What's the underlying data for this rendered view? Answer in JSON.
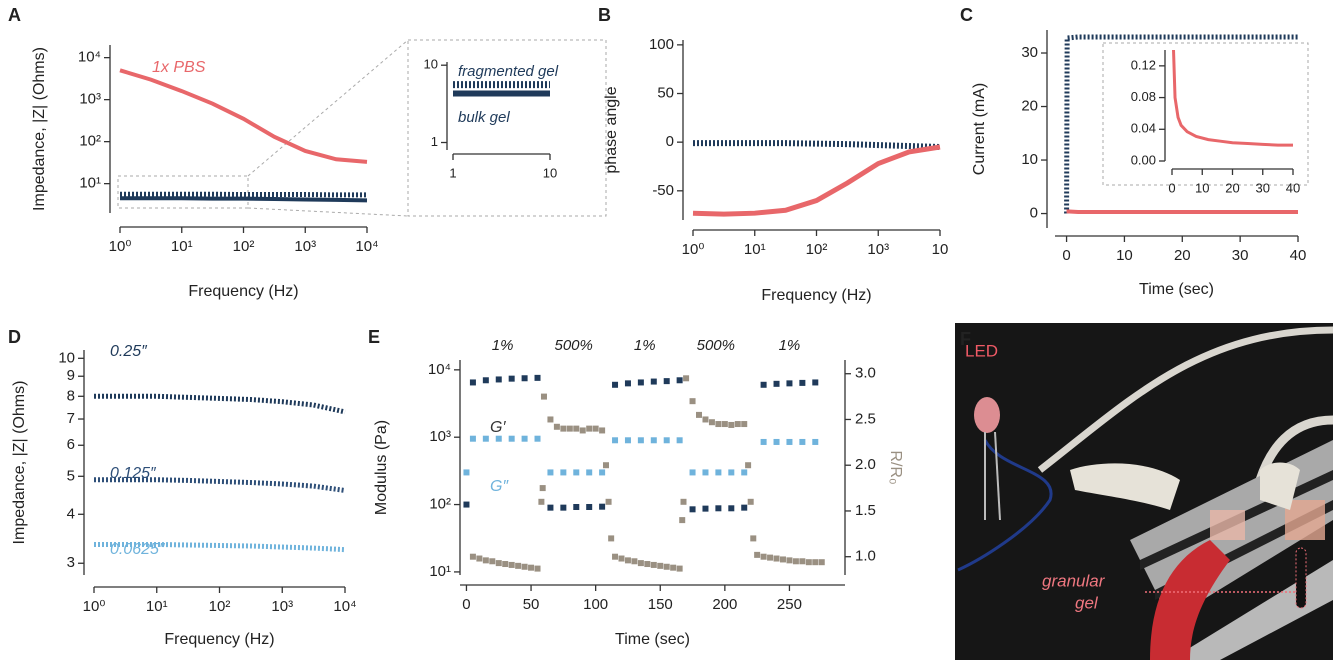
{
  "chart_data": [
    {
      "type": "line",
      "label": "A",
      "xlabel": "Frequency (Hz)",
      "ylabel": "Impedance, |Z| (Ohms)",
      "xscale": "log",
      "yscale": "log",
      "x": [
        1,
        3.16,
        10,
        31.6,
        100,
        316,
        1000,
        3162,
        10000
      ],
      "series": [
        {
          "name": "1x PBS",
          "color": "#e8676a",
          "style": "solid",
          "values": [
            5000,
            3000,
            1600,
            800,
            350,
            130,
            60,
            38,
            33
          ]
        },
        {
          "name": null,
          "color": "#1f3a5a",
          "style": "dotted",
          "values": [
            5.6,
            5.6,
            5.6,
            5.6,
            5.5,
            5.5,
            5.5,
            5.4,
            5.4
          ]
        },
        {
          "name": null,
          "color": "#1f3a5a",
          "style": "solid",
          "values": [
            4.5,
            4.5,
            4.5,
            4.4,
            4.4,
            4.3,
            4.2,
            4.1,
            4.0
          ]
        }
      ],
      "xlim": [
        1,
        10000
      ],
      "xticks": [
        {
          "value": 1,
          "label": "10⁰"
        },
        {
          "value": 10,
          "label": "10¹"
        },
        {
          "value": 100,
          "label": "10²"
        },
        {
          "value": 1000,
          "label": "10³"
        },
        {
          "value": 10000,
          "label": "10⁴"
        }
      ],
      "ylim": [
        2,
        20000
      ],
      "yticks": [
        {
          "value": 10,
          "label": "10¹"
        },
        {
          "value": 100,
          "label": "10²"
        },
        {
          "value": 1000,
          "label": "10³"
        },
        {
          "value": 10000,
          "label": "10⁴"
        }
      ]
    },
    {
      "type": "line",
      "xscale": "log",
      "yscale": "log",
      "x": [
        1,
        10
      ],
      "series": [
        {
          "name": "fragmented gel",
          "color": "#1f3a5a",
          "style": "dotted",
          "values": [
            5.6,
            5.6
          ]
        },
        {
          "name": "bulk gel",
          "color": "#1f3a5a",
          "style": "solid",
          "values": [
            4.3,
            4.3
          ]
        }
      ],
      "xlim": [
        1,
        10
      ],
      "xticks": [
        1,
        10
      ],
      "ylim": [
        0.8,
        11
      ],
      "yticks": [
        1,
        10
      ]
    },
    {
      "type": "line",
      "label": "B",
      "xlabel": "Frequency (Hz)",
      "ylabel": "phase angle",
      "xscale": "log",
      "x": [
        1,
        3.16,
        10,
        31.6,
        100,
        316,
        1000,
        3162,
        10000
      ],
      "series": [
        {
          "name": null,
          "color": "#1f3a5a",
          "style": "dotted",
          "values": [
            -1,
            -1,
            -1,
            -1,
            -1.5,
            -2,
            -3,
            -4,
            -5
          ]
        },
        {
          "name": null,
          "color": "#e8676a",
          "style": "solid",
          "values": [
            -73,
            -74,
            -73,
            -70,
            -60,
            -42,
            -22,
            -10,
            -5
          ]
        }
      ],
      "xlim": [
        1,
        10000
      ],
      "xticks": [
        {
          "value": 1,
          "label": "10⁰"
        },
        {
          "value": 10,
          "label": "10¹"
        },
        {
          "value": 100,
          "label": "10²"
        },
        {
          "value": 1000,
          "label": "10³"
        },
        {
          "value": 10000,
          "label": "10"
        }
      ],
      "ylim": [
        -80,
        105
      ],
      "yticks": [
        -50,
        0,
        50,
        100
      ]
    },
    {
      "type": "line",
      "label": "C",
      "xlabel": "Time (sec)",
      "ylabel": "Current (mA)",
      "x": [
        0,
        0.1,
        2,
        5,
        10,
        15,
        20,
        25,
        30,
        35,
        40
      ],
      "series": [
        {
          "name": null,
          "color": "#1f3a5a",
          "style": "dotted",
          "values": [
            0,
            32.8,
            33,
            33,
            33,
            33,
            33,
            33,
            33,
            33,
            33
          ]
        },
        {
          "name": null,
          "color": "#e8676a",
          "style": "solid",
          "values": [
            0.4,
            0.4,
            0.3,
            0.3,
            0.3,
            0.3,
            0.3,
            0.3,
            0.3,
            0.3,
            0.3
          ]
        }
      ],
      "xlim": [
        -2,
        40
      ],
      "xticks": [
        0,
        10,
        20,
        30,
        40
      ],
      "ylim": [
        -2.7,
        34.3
      ],
      "yticks": [
        0,
        10,
        20,
        30
      ]
    },
    {
      "type": "line",
      "x": [
        0.5,
        1,
        2,
        3,
        5,
        8,
        12,
        16,
        20,
        25,
        30,
        35,
        40
      ],
      "series": [
        {
          "name": null,
          "color": "#e8676a",
          "style": "solid",
          "values": [
            0.14,
            0.08,
            0.055,
            0.045,
            0.037,
            0.031,
            0.027,
            0.025,
            0.023,
            0.022,
            0.021,
            0.02,
            0.02
          ]
        }
      ],
      "xlim": [
        0,
        40
      ],
      "xticks": [
        0,
        10,
        20,
        30,
        40
      ],
      "ylim": [
        0,
        0.14
      ],
      "yticks": [
        {
          "value": 0,
          "label": "0.00"
        },
        0.04,
        0.08,
        0.12
      ]
    },
    {
      "type": "line",
      "label": "D",
      "xlabel": "Frequency (Hz)",
      "ylabel": "Impedance, |Z| (Ohms)",
      "xscale": "log",
      "yscale": "log",
      "x": [
        1,
        3.16,
        10,
        31.6,
        100,
        316,
        1000,
        3162,
        10000
      ],
      "series": [
        {
          "name": "0.25″",
          "color": "#1f3a5a",
          "style": "dotted",
          "values": [
            8.0,
            8.0,
            8.0,
            7.95,
            7.9,
            7.85,
            7.75,
            7.6,
            7.3
          ]
        },
        {
          "name": "0.125″",
          "color": "#2e4f78",
          "style": "dotted",
          "values": [
            4.9,
            4.9,
            4.9,
            4.88,
            4.85,
            4.82,
            4.78,
            4.72,
            4.6
          ]
        },
        {
          "name": "0.0625″",
          "color": "#6fb3dc",
          "style": "dotted",
          "values": [
            3.35,
            3.35,
            3.35,
            3.34,
            3.33,
            3.32,
            3.3,
            3.28,
            3.25
          ]
        }
      ],
      "xlim": [
        1,
        10000
      ],
      "xticks": [
        {
          "value": 1,
          "label": "10⁰"
        },
        {
          "value": 10,
          "label": "10¹"
        },
        {
          "value": 100,
          "label": "10²"
        },
        {
          "value": 1000,
          "label": "10³"
        },
        {
          "value": 10000,
          "label": "10⁴"
        }
      ],
      "ylim": [
        2.8,
        10.5
      ],
      "yticks": [
        3,
        4,
        5,
        6,
        7,
        8,
        9,
        10
      ]
    },
    {
      "type": "scatter",
      "label": "E",
      "xlabel": "Time (sec)",
      "ylabel": "Modulus (Pa)",
      "y2label": "R/R₀",
      "yscale": "log",
      "annotations": [
        "1%",
        "500%",
        "1%",
        "500%",
        "1%"
      ],
      "series": [
        {
          "name": "G′",
          "color": "#1f3a5a",
          "style": "markers",
          "x": [
            0,
            5,
            15,
            25,
            35,
            45,
            55,
            65,
            75,
            85,
            95,
            105,
            115,
            125,
            135,
            145,
            155,
            165,
            175,
            185,
            195,
            205,
            215,
            230,
            240,
            250,
            260,
            270
          ],
          "values": [
            100,
            6500,
            7000,
            7200,
            7400,
            7500,
            7600,
            90,
            90,
            92,
            92,
            93,
            6000,
            6300,
            6500,
            6700,
            6800,
            7000,
            85,
            87,
            88,
            88,
            90,
            6000,
            6200,
            6300,
            6400,
            6500
          ]
        },
        {
          "name": "G″",
          "color": "#6fb3dc",
          "style": "markers",
          "x": [
            0,
            5,
            15,
            25,
            35,
            45,
            55,
            65,
            75,
            85,
            95,
            105,
            115,
            125,
            135,
            145,
            155,
            165,
            175,
            185,
            195,
            205,
            215,
            230,
            240,
            250,
            260,
            270
          ],
          "values": [
            300,
            950,
            950,
            950,
            950,
            950,
            950,
            300,
            300,
            300,
            300,
            300,
            900,
            900,
            900,
            900,
            900,
            900,
            300,
            300,
            300,
            300,
            300,
            850,
            850,
            850,
            850,
            850
          ]
        },
        {
          "name": null,
          "color": "#9a9082",
          "style": "markers",
          "axis": "y2",
          "x": [
            5,
            10,
            15,
            20,
            25,
            30,
            35,
            40,
            45,
            50,
            55,
            58,
            59,
            60,
            65,
            70,
            75,
            80,
            85,
            90,
            95,
            100,
            105,
            108,
            110,
            112,
            115,
            120,
            125,
            130,
            135,
            140,
            145,
            150,
            155,
            160,
            165,
            167,
            168,
            170,
            175,
            180,
            185,
            190,
            195,
            200,
            205,
            210,
            215,
            218,
            220,
            222,
            225,
            230,
            235,
            240,
            245,
            250,
            255,
            260,
            265,
            270,
            275
          ],
          "values": [
            1.0,
            0.98,
            0.96,
            0.95,
            0.93,
            0.92,
            0.91,
            0.9,
            0.89,
            0.88,
            0.87,
            1.6,
            1.75,
            2.75,
            2.5,
            2.42,
            2.4,
            2.4,
            2.4,
            2.38,
            2.4,
            2.4,
            2.38,
            2.0,
            1.6,
            1.2,
            1.0,
            0.98,
            0.96,
            0.95,
            0.93,
            0.92,
            0.91,
            0.9,
            0.89,
            0.88,
            0.87,
            1.4,
            1.6,
            2.95,
            2.7,
            2.55,
            2.5,
            2.47,
            2.45,
            2.45,
            2.44,
            2.45,
            2.45,
            2.0,
            1.6,
            1.2,
            1.02,
            1.0,
            0.99,
            0.98,
            0.97,
            0.96,
            0.95,
            0.95,
            0.94,
            0.94,
            0.94
          ]
        }
      ],
      "xlim": [
        -5,
        293
      ],
      "xticks": [
        0,
        50,
        100,
        150,
        200,
        250
      ],
      "ylim": [
        9,
        14000
      ],
      "yticks": [
        {
          "value": 10,
          "label": "10¹"
        },
        {
          "value": 100,
          "label": "10²"
        },
        {
          "value": 1000,
          "label": "10³"
        },
        {
          "value": 10000,
          "label": "10⁴"
        }
      ],
      "y2lim": [
        0.8,
        3.15
      ],
      "y2ticks": [
        {
          "value": 1,
          "label": "1.0"
        },
        1.5,
        {
          "value": 2,
          "label": "2.0"
        },
        2.5,
        {
          "value": 3,
          "label": "3.0"
        }
      ]
    },
    {
      "type": "image",
      "label": "F",
      "annotations": [
        "LED"
      ],
      "callout": [
        "granular",
        "gel"
      ]
    }
  ]
}
